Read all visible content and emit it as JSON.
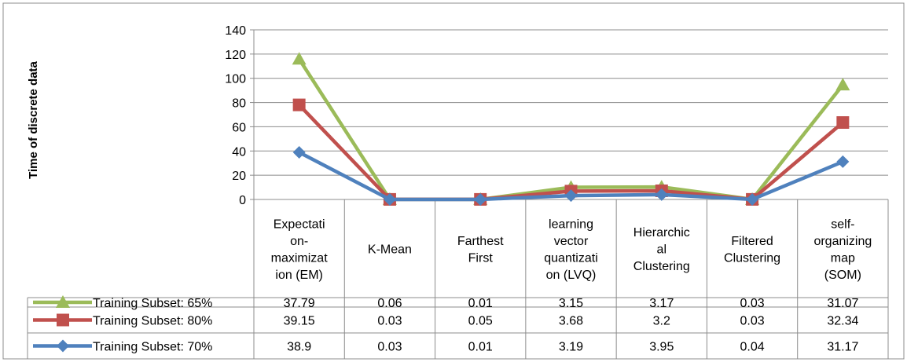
{
  "chart_data": {
    "type": "line",
    "title": "",
    "xlabel": "",
    "ylabel": "Time of discrete data",
    "ylim": [
      0,
      140
    ],
    "yticks": [
      0,
      20,
      40,
      60,
      80,
      100,
      120,
      140
    ],
    "grid": true,
    "legend": "data-table-left",
    "categories": [
      [
        "Expectati",
        "on-",
        "maximizat",
        "ion (EM)"
      ],
      [
        "K-Mean"
      ],
      [
        "Farthest",
        "First"
      ],
      [
        "learning",
        "vector",
        "quantizati",
        "on (LVQ)"
      ],
      [
        "Hierarchic",
        "al",
        "Clustering"
      ],
      [
        "Filtered",
        "Clustering"
      ],
      [
        "self-",
        "organizing",
        "map",
        "(SOM)"
      ]
    ],
    "series": [
      {
        "name": "Training Subset: 65%",
        "color": "#9BBB59",
        "marker": "triangle",
        "values": [
          37.79,
          0.06,
          0.01,
          3.15,
          3.17,
          0.03,
          31.07
        ],
        "labels": [
          "37.79",
          "0.06",
          "0.01",
          "3.15",
          "3.17",
          "0.03",
          "31.07"
        ]
      },
      {
        "name": "Training Subset: 80%",
        "color": "#C0504D",
        "marker": "square",
        "values": [
          39.15,
          0.03,
          0.05,
          3.68,
          3.2,
          0.03,
          32.34
        ],
        "labels": [
          "39.15",
          "0.03",
          "0.05",
          "3.68",
          "3.2",
          "0.03",
          "32.34"
        ]
      },
      {
        "name": "Training Subset: 70%",
        "color": "#4F81BD",
        "marker": "diamond",
        "values": [
          38.9,
          0.03,
          0.01,
          3.19,
          3.95,
          0.04,
          31.17
        ],
        "labels": [
          "38.9",
          "0.03",
          "0.01",
          "3.19",
          "3.95",
          "0.04",
          "31.17"
        ]
      }
    ],
    "stacked_order": [
      "Training Subset: 70%",
      "Training Subset: 80%",
      "Training Subset: 65%"
    ]
  }
}
